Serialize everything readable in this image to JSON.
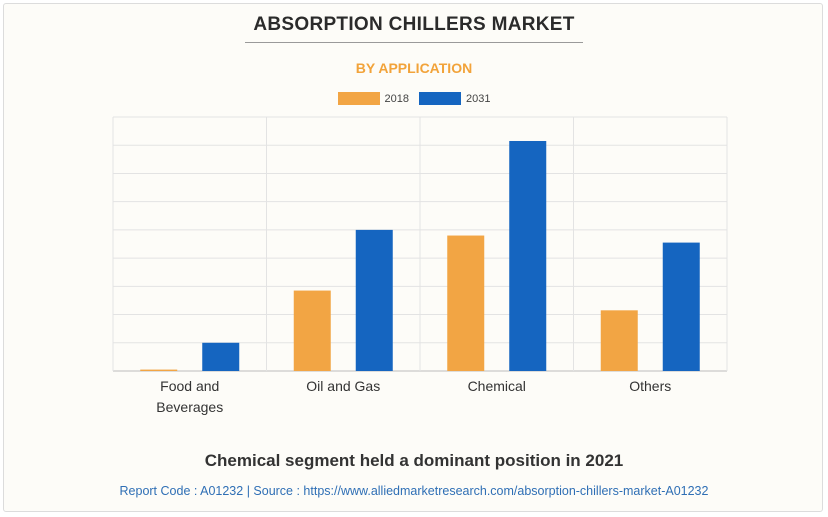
{
  "chart_data": {
    "type": "bar",
    "title": "ABSORPTION CHILLERS MARKET",
    "subtitle": "BY APPLICATION",
    "categories": [
      "Food and Beverages",
      "Oil and Gas",
      "Chemical",
      "Others"
    ],
    "category_lines": [
      [
        "Food and",
        "Beverages"
      ],
      [
        "Oil and Gas"
      ],
      [
        "Chemical"
      ],
      [
        "Others"
      ]
    ],
    "series": [
      {
        "name": "2018",
        "color": "#f2a544",
        "values": [
          0.5,
          28.5,
          48,
          21.5
        ]
      },
      {
        "name": "2031",
        "color": "#1565c0",
        "values": [
          10,
          50,
          81.5,
          45.5
        ]
      }
    ],
    "ylim": [
      0,
      90
    ],
    "grid": true,
    "legend_position": "top-center",
    "xlabel": "",
    "ylabel": ""
  },
  "headline": "Chemical segment held a dominant position in 2021",
  "footer": "Report Code : A01232  |  Source : https://www.alliedmarketresearch.com/absorption-chillers-market-A01232"
}
